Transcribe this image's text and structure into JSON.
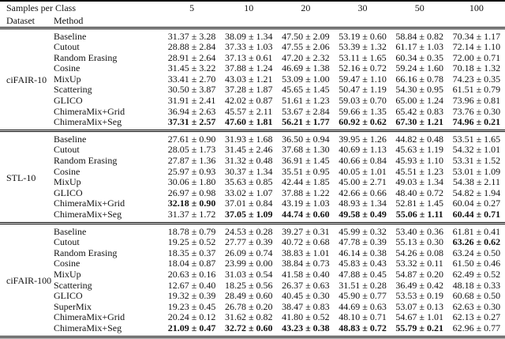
{
  "table": {
    "header": {
      "samples_per_class_label": "Samples per Class",
      "dataset_label": "Dataset",
      "method_label": "Method",
      "sample_counts": [
        "5",
        "10",
        "20",
        "30",
        "50",
        "100"
      ]
    },
    "sections": [
      {
        "dataset": "ciFAIR-10",
        "rows": [
          {
            "method": "Baseline",
            "values": [
              "31.37 ± 3.28",
              "38.09 ± 1.34",
              "47.50 ± 2.09",
              "53.19 ± 0.60",
              "58.84 ± 0.82",
              "70.34 ± 1.17"
            ]
          },
          {
            "method": "Cutout",
            "values": [
              "28.88 ± 2.84",
              "37.33 ± 1.03",
              "47.55 ± 2.06",
              "53.39 ± 1.32",
              "61.17 ± 1.03",
              "72.14 ± 1.10"
            ]
          },
          {
            "method": "Random Erasing",
            "values": [
              "28.91 ± 2.64",
              "37.13 ± 0.61",
              "47.20 ± 2.32",
              "53.11 ± 1.65",
              "60.34 ± 0.35",
              "72.00 ± 0.71"
            ]
          },
          {
            "method": "Cosine",
            "values": [
              "31.45 ± 3.22",
              "37.88 ± 1.24",
              "46.69 ± 1.38",
              "52.16 ± 0.72",
              "59.24 ± 1.60",
              "70.18 ± 1.32"
            ]
          },
          {
            "method": "MixUp",
            "values": [
              "33.41 ± 2.70",
              "43.03 ± 1.21",
              "53.09 ± 1.00",
              "59.47 ± 1.10",
              "66.16 ± 0.78",
              "74.23 ± 0.35"
            ]
          },
          {
            "method": "Scattering",
            "values": [
              "30.50 ± 3.87",
              "37.28 ± 1.87",
              "45.65 ± 1.45",
              "50.47 ± 1.19",
              "54.30 ± 0.95",
              "61.51 ± 0.79"
            ]
          },
          {
            "method": "GLICO",
            "values": [
              "31.91 ± 2.41",
              "42.02 ± 0.87",
              "51.61 ± 1.23",
              "59.03 ± 0.70",
              "65.00 ± 1.24",
              "73.96 ± 0.81"
            ]
          },
          {
            "method": "ChimeraMix+Grid",
            "values": [
              "36.94 ± 2.63",
              "45.57 ± 2.11",
              "53.67 ± 2.84",
              "59.66 ± 1.35",
              "65.42 ± 0.83",
              "73.76 ± 0.30"
            ]
          },
          {
            "method": "ChimeraMix+Seg",
            "values": [
              "37.31 ± 2.57",
              "47.60 ± 1.81",
              "56.21 ± 1.77",
              "60.92 ± 0.62",
              "67.30 ± 1.21",
              "74.96 ± 0.21"
            ],
            "bold": [
              true,
              true,
              true,
              true,
              true,
              true
            ]
          }
        ]
      },
      {
        "dataset": "STL-10",
        "rows": [
          {
            "method": "Baseline",
            "values": [
              "27.61 ± 0.90",
              "31.93 ± 1.68",
              "36.50 ± 0.94",
              "39.95 ± 1.26",
              "44.82 ± 0.48",
              "53.51 ± 1.65"
            ]
          },
          {
            "method": "Cutout",
            "values": [
              "28.05 ± 1.73",
              "31.45 ± 2.46",
              "37.68 ± 1.30",
              "40.69 ± 1.13",
              "45.63 ± 1.19",
              "54.32 ± 1.01"
            ]
          },
          {
            "method": "Random Erasing",
            "values": [
              "27.87 ± 1.36",
              "31.32 ± 0.48",
              "36.91 ± 1.45",
              "40.66 ± 0.84",
              "45.93 ± 1.10",
              "53.31 ± 1.52"
            ]
          },
          {
            "method": "Cosine",
            "values": [
              "25.97 ± 0.93",
              "30.37 ± 1.34",
              "35.51 ± 0.95",
              "40.05 ± 1.01",
              "45.51 ± 1.23",
              "53.01 ± 1.09"
            ]
          },
          {
            "method": "MixUp",
            "values": [
              "30.06 ± 1.80",
              "35.63 ± 0.85",
              "42.44 ± 1.85",
              "45.00 ± 2.71",
              "49.03 ± 1.34",
              "54.38 ± 2.11"
            ]
          },
          {
            "method": "GLICO",
            "values": [
              "26.97 ± 0.98",
              "33.02 ± 1.07",
              "37.88 ± 1.22",
              "42.66 ± 0.66",
              "48.40 ± 0.72",
              "54.82 ± 1.94"
            ]
          },
          {
            "method": "ChimeraMix+Grid",
            "values": [
              "32.18 ± 0.90",
              "37.01 ± 0.84",
              "43.19 ± 1.03",
              "48.93 ± 1.34",
              "52.81 ± 1.45",
              "60.04 ± 0.27"
            ],
            "bold": [
              true,
              false,
              false,
              false,
              false,
              false
            ]
          },
          {
            "method": "ChimeraMix+Seg",
            "values": [
              "31.37 ± 1.72",
              "37.05 ± 1.09",
              "44.74 ± 0.60",
              "49.58 ± 0.49",
              "55.06 ± 1.11",
              "60.44 ± 0.71"
            ],
            "bold": [
              false,
              true,
              true,
              true,
              true,
              true
            ]
          }
        ]
      },
      {
        "dataset": "ciFAIR-100",
        "rows": [
          {
            "method": "Baseline",
            "values": [
              "18.78 ± 0.79",
              "24.53 ± 0.28",
              "39.27 ± 0.31",
              "45.99 ± 0.32",
              "53.40 ± 0.36",
              "61.81 ± 0.41"
            ]
          },
          {
            "method": "Cutout",
            "values": [
              "19.25 ± 0.52",
              "27.77 ± 0.39",
              "40.72 ± 0.68",
              "47.78 ± 0.39",
              "55.13 ± 0.30",
              "63.26 ± 0.62"
            ],
            "bold": [
              false,
              false,
              false,
              false,
              false,
              true
            ]
          },
          {
            "method": "Random Erasing",
            "values": [
              "18.35 ± 0.37",
              "26.09 ± 0.74",
              "38.83 ± 1.01",
              "46.14 ± 0.38",
              "54.26 ± 0.08",
              "63.24 ± 0.50"
            ]
          },
          {
            "method": "Cosine",
            "values": [
              "18.04 ± 0.87",
              "23.99 ± 0.00",
              "38.84 ± 0.73",
              "45.83 ± 0.43",
              "53.32 ± 0.11",
              "61.50 ± 0.46"
            ]
          },
          {
            "method": "MixUp",
            "values": [
              "20.63 ± 0.16",
              "31.03 ± 0.54",
              "41.58 ± 0.40",
              "47.88 ± 0.45",
              "54.87 ± 0.20",
              "62.49 ± 0.52"
            ]
          },
          {
            "method": "Scattering",
            "values": [
              "12.67 ± 0.40",
              "18.25 ± 0.56",
              "26.37 ± 0.63",
              "31.51 ± 0.28",
              "36.49 ± 0.42",
              "48.18 ± 0.33"
            ]
          },
          {
            "method": "GLICO",
            "values": [
              "19.32 ± 0.39",
              "28.49 ± 0.60",
              "40.45 ± 0.30",
              "45.90 ± 0.77",
              "53.53 ± 0.19",
              "60.68 ± 0.50"
            ]
          },
          {
            "method": "SuperMix",
            "values": [
              "19.23 ± 0.45",
              "26.78 ± 0.20",
              "38.47 ± 0.83",
              "44.69 ± 0.63",
              "53.07 ± 0.13",
              "62.63 ± 0.30"
            ]
          },
          {
            "method": "ChimeraMix+Grid",
            "values": [
              "20.24 ± 0.12",
              "31.62 ± 0.82",
              "41.80 ± 0.52",
              "48.10 ± 0.71",
              "54.67 ± 1.01",
              "62.13 ± 0.27"
            ]
          },
          {
            "method": "ChimeraMix+Seg",
            "values": [
              "21.09 ± 0.47",
              "32.72 ± 0.60",
              "43.23 ± 0.38",
              "48.83 ± 0.72",
              "55.79 ± 0.21",
              "62.96 ± 0.77"
            ],
            "bold": [
              true,
              true,
              true,
              true,
              true,
              false
            ]
          }
        ]
      }
    ]
  }
}
